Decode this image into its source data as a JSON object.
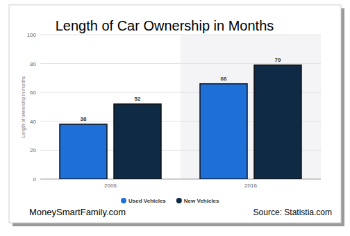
{
  "chart_data": {
    "type": "bar",
    "title": "Length of Car Ownership in Months",
    "y_label": "Length of ownership in months",
    "categories": [
      "2006",
      "2016"
    ],
    "series": [
      {
        "name": "Used Vehicles",
        "color": "#1f6fd8",
        "values": [
          38,
          66
        ]
      },
      {
        "name": "New Vehicles",
        "color": "#0e2a44",
        "values": [
          52,
          79
        ]
      }
    ],
    "ylim": [
      0,
      100
    ],
    "yticks": [
      0,
      20,
      40,
      60,
      80,
      100
    ],
    "grid": true,
    "data_labels": true,
    "legend": "bottom",
    "annotations": [
      "MoneySmartFamily.com",
      "Source: Statistia.com"
    ]
  }
}
